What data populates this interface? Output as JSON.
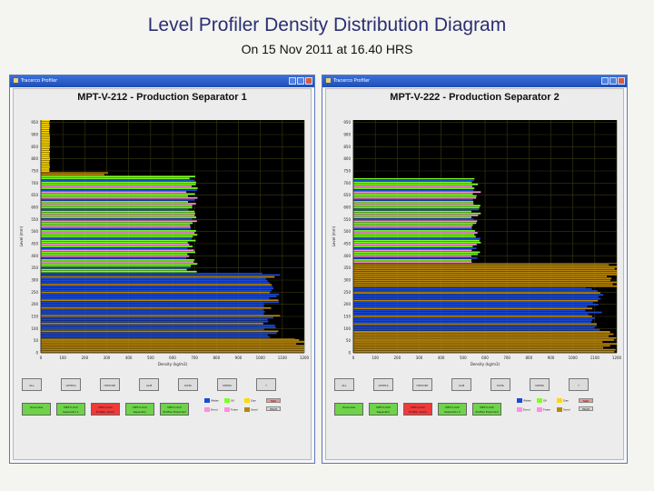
{
  "slide": {
    "title": "Level Profiler Density Distribution Diagram",
    "subtitle": "On 15 Nov 2011 at 16.40 HRS"
  },
  "colors": {
    "gas": "#ffd900",
    "oil": "#7fff22",
    "emulsion": "#ff8ee0",
    "water": "#1a4ad8",
    "sand": "#b8860b",
    "plot_bg": "#000000"
  },
  "windows": [
    {
      "titlebar": "Tracerco Profiler",
      "chart_title": "MPT-V-212 - Production Separator 1",
      "buttons": [
        "ALL",
        "LEVELS",
        "HISTORY",
        "ALM",
        "DATA",
        "VIEWS",
        "?"
      ],
      "status_pills": [
        {
          "line1": "Overview",
          "line2": "",
          "color": "#6ed34a"
        },
        {
          "line1": "MPT-V-212",
          "line2": "Separator 1",
          "color": "#6ed34a"
        },
        {
          "line1": "MPT-V-212",
          "line2": "Profiler Alarm",
          "color": "#ef3a3a"
        },
        {
          "line1": "MPT-V-212",
          "line2": "Separator",
          "color": "#6ed34a"
        },
        {
          "line1": "MPT-V-212",
          "line2": "Profiler Exported",
          "color": "#6ed34a"
        }
      ],
      "legend": [
        {
          "label": "Water",
          "color_key": "water"
        },
        {
          "label": "Oil",
          "color_key": "oil"
        },
        {
          "label": "Gas",
          "color_key": "gas"
        },
        {
          "label": "Emul",
          "color_key": "emulsion"
        },
        {
          "label": "Foam",
          "color_key": "emulsion"
        },
        {
          "label": "Sand",
          "color_key": "sand"
        }
      ],
      "legend_buttons": [
        "SGV",
        "HIGH"
      ]
    },
    {
      "titlebar": "Tracerco Profiler",
      "chart_title": "MPT-V-222 - Production Separator 2",
      "buttons": [
        "ALL",
        "LEVELS",
        "HISTORY",
        "ALM",
        "DATA",
        "VIEWS",
        "?"
      ],
      "status_pills": [
        {
          "line1": "Overview",
          "line2": "",
          "color": "#6ed34a"
        },
        {
          "line1": "MPT-V-222",
          "line2": "Separator",
          "color": "#6ed34a"
        },
        {
          "line1": "MPT-V-222",
          "line2": "Profiler Alarm",
          "color": "#ef3a3a"
        },
        {
          "line1": "MPT-V-222",
          "line2": "Separator 2",
          "color": "#6ed34a"
        },
        {
          "line1": "MPT-V-222",
          "line2": "Profiler Exported",
          "color": "#6ed34a"
        }
      ],
      "legend": [
        {
          "label": "Water",
          "color_key": "water"
        },
        {
          "label": "Oil",
          "color_key": "oil"
        },
        {
          "label": "Gas",
          "color_key": "gas"
        },
        {
          "label": "Emul",
          "color_key": "emulsion"
        },
        {
          "label": "Foam",
          "color_key": "emulsion"
        },
        {
          "label": "Sand",
          "color_key": "sand"
        }
      ],
      "legend_buttons": [
        "SGV",
        "HIGH"
      ]
    }
  ],
  "chart_data": [
    {
      "type": "bar",
      "orientation": "horizontal",
      "title": "MPT-V-212 - Production Separator 1",
      "xlabel": "Density (kg/m3)",
      "ylabel": "Level (mm)",
      "x_ticks": [
        "0",
        "100",
        "200",
        "300",
        "400",
        "500",
        "600",
        "700",
        "800",
        "900",
        "1000",
        "1100",
        "1200"
      ],
      "y_ticks": [
        "0",
        "50",
        "100",
        "150",
        "200",
        "250",
        "300",
        "350",
        "400",
        "450",
        "500",
        "550",
        "600",
        "650",
        "700",
        "750",
        "800",
        "850",
        "900",
        "950"
      ],
      "xlim": [
        0,
        1200
      ],
      "ylim": [
        0,
        960
      ],
      "layers": [
        {
          "phase": "sand",
          "from": 0,
          "to": 60,
          "density": 1200
        },
        {
          "phase": "water",
          "from": 60,
          "to": 330,
          "density": 1050
        },
        {
          "phase": "oil",
          "from": 330,
          "to": 730,
          "density": 690
        },
        {
          "phase": "sand",
          "from": 730,
          "to": 745,
          "density": 300
        },
        {
          "phase": "gas",
          "from": 745,
          "to": 960,
          "density": 40
        }
      ]
    },
    {
      "type": "bar",
      "orientation": "horizontal",
      "title": "MPT-V-222 - Production Separator 2",
      "xlabel": "Density (kg/m3)",
      "ylabel": "Level (mm)",
      "x_ticks": [
        "0",
        "100",
        "200",
        "300",
        "400",
        "500",
        "600",
        "700",
        "800",
        "900",
        "1000",
        "1100",
        "1200"
      ],
      "y_ticks": [
        "0",
        "50",
        "100",
        "150",
        "200",
        "250",
        "300",
        "350",
        "400",
        "450",
        "500",
        "550",
        "600",
        "650",
        "700",
        "750",
        "800",
        "850",
        "900",
        "950"
      ],
      "xlim": [
        0,
        1200
      ],
      "ylim": [
        0,
        960
      ],
      "layers": [
        {
          "phase": "sand",
          "from": 0,
          "to": 90,
          "density": 1180
        },
        {
          "phase": "water",
          "from": 90,
          "to": 270,
          "density": 1100
        },
        {
          "phase": "sand",
          "from": 270,
          "to": 370,
          "density": 1200
        },
        {
          "phase": "oil",
          "from": 370,
          "to": 720,
          "density": 560
        },
        {
          "phase": "gas",
          "from": 720,
          "to": 960,
          "density": 0
        }
      ]
    }
  ]
}
